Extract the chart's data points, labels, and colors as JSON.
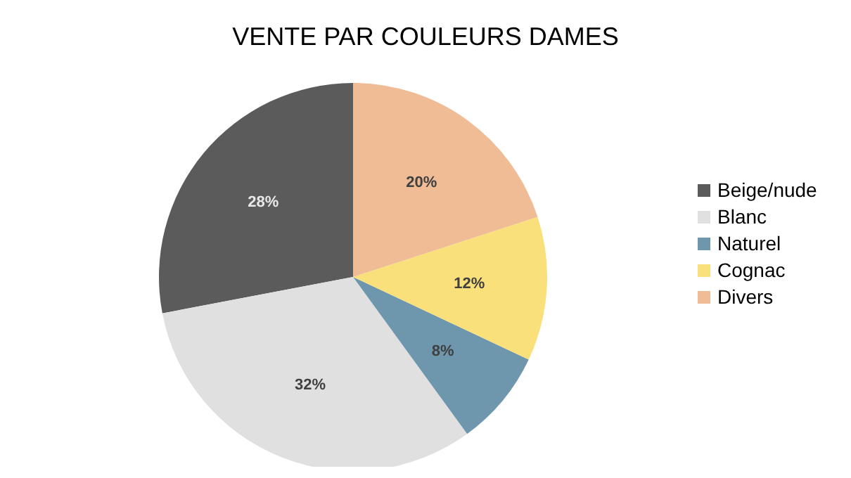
{
  "chart_data": {
    "type": "pie",
    "title": "VENTE PAR COULEURS DAMES",
    "categories": [
      "Beige/nude",
      "Blanc",
      "Naturel",
      "Cognac",
      "Divers"
    ],
    "values": [
      28,
      32,
      8,
      12,
      20
    ],
    "colors": [
      "#5b5b5b",
      "#e0e0e0",
      "#6e97ad",
      "#f9e07b",
      "#efbc96"
    ],
    "value_labels": [
      "28%",
      "32%",
      "8%",
      "12%",
      "20%"
    ],
    "legend": "right"
  }
}
